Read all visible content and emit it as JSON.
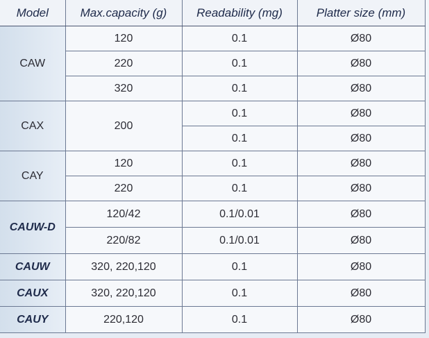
{
  "table": {
    "header": [
      "Model",
      "Max.capacity (g)",
      "Readability (mg)",
      "Platter size (mm)"
    ],
    "groups": [
      {
        "model": "CAW",
        "rows": [
          [
            "120",
            "0.1",
            "Ø80"
          ],
          [
            "220",
            "0.1",
            "Ø80"
          ],
          [
            "320",
            "0.1",
            "Ø80"
          ]
        ]
      },
      {
        "model": "CAX",
        "capacity": "200",
        "rows": [
          [
            "0.1",
            "Ø80"
          ],
          [
            "0.1",
            "Ø80"
          ]
        ]
      },
      {
        "model": "CAY",
        "rows": [
          [
            "120",
            "0.1",
            "Ø80"
          ],
          [
            "220",
            "0.1",
            "Ø80"
          ]
        ]
      },
      {
        "model": "CAUW-D",
        "rows": [
          [
            "120/42",
            "0.1/0.01",
            "Ø80"
          ],
          [
            "220/82",
            "0.1/0.01",
            "Ø80"
          ]
        ]
      },
      {
        "model": "CAUW",
        "rows": [
          [
            "320, 220,120",
            "0.1",
            "Ø80"
          ]
        ]
      },
      {
        "model": "CAUX",
        "rows": [
          [
            "320, 220,120",
            "0.1",
            "Ø80"
          ]
        ]
      },
      {
        "model": "CAUY",
        "rows": [
          [
            "220,120",
            "0.1",
            "Ø80"
          ]
        ]
      }
    ]
  }
}
